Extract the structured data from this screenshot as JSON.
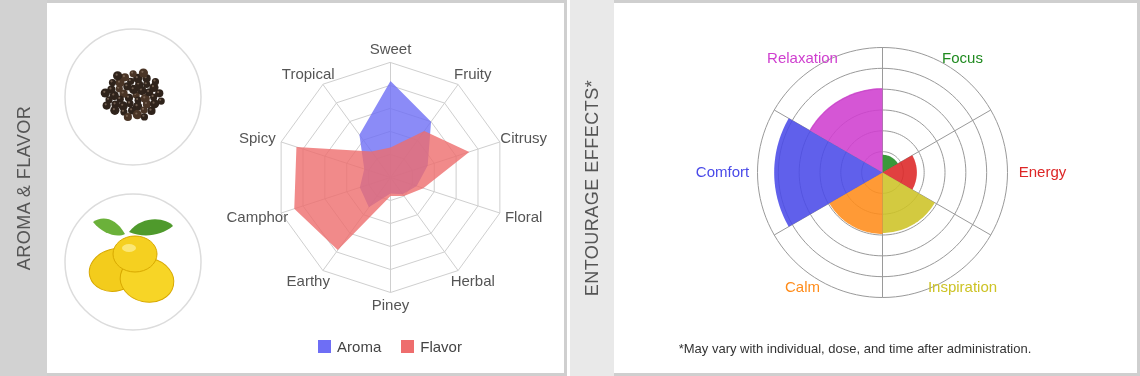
{
  "chart_data": [
    {
      "type": "radar",
      "title": "AROMA & FLAVOR",
      "categories": [
        "Sweet",
        "Fruity",
        "Citrusy",
        "Floral",
        "Herbal",
        "Piney",
        "Earthy",
        "Camphor",
        "Spicy",
        "Tropical"
      ],
      "series": [
        {
          "name": "Aroma",
          "color": "#6e6ef5",
          "values": [
            4.2,
            3.0,
            1.7,
            1.2,
            0.9,
            0.7,
            1.6,
            1.4,
            1.2,
            2.3
          ]
        },
        {
          "name": "Flavor",
          "color": "#ee6d6d",
          "values": [
            1.3,
            2.5,
            3.6,
            1.5,
            1.0,
            0.8,
            3.9,
            4.4,
            4.3,
            1.4
          ]
        }
      ],
      "ylim": [
        0,
        5
      ],
      "yticks": [
        1,
        2,
        3,
        4,
        5
      ],
      "grid": true,
      "tick_labels": false,
      "legend": "bottom"
    },
    {
      "type": "polar_area",
      "title": "ENTOURAGE EFFECTS*",
      "categories": [
        "Focus",
        "Energy",
        "Inspiration",
        "Calm",
        "Comfort",
        "Relaxation"
      ],
      "values": [
        17,
        33,
        58,
        59,
        104,
        81
      ],
      "colors": [
        "#1f8a1f",
        "#dd2626",
        "#cdc326",
        "#ff8c1a",
        "#4a4ae8",
        "#cf3fcf"
      ],
      "ylim": [
        0,
        120
      ],
      "yticks": [
        20,
        40,
        60,
        80,
        100,
        120
      ],
      "grid": true,
      "tick_labels": false,
      "caption": "*May vary with individual, dose, and time after administration."
    }
  ]
}
